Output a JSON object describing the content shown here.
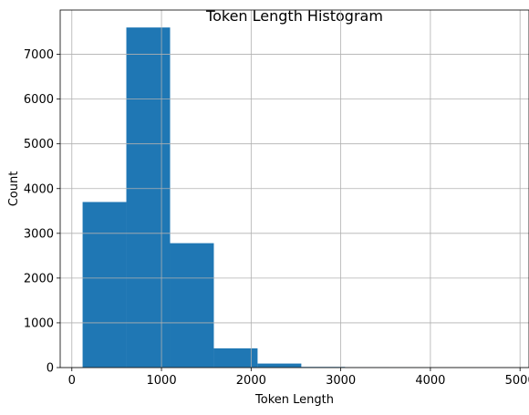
{
  "chart_data": {
    "type": "bar",
    "title": "Token Length Histogram",
    "xlabel": "Token Length",
    "ylabel": "Count",
    "xlim": [
      -130,
      5100
    ],
    "ylim": [
      0,
      7990
    ],
    "xticks": [
      0,
      1000,
      2000,
      3000,
      4000,
      5000
    ],
    "yticks": [
      0,
      1000,
      2000,
      3000,
      4000,
      5000,
      6000,
      7000
    ],
    "grid": true,
    "bins": [
      {
        "start": 120,
        "end": 608,
        "count": 3700
      },
      {
        "start": 608,
        "end": 1096,
        "count": 7600
      },
      {
        "start": 1096,
        "end": 1584,
        "count": 2780
      },
      {
        "start": 1584,
        "end": 2072,
        "count": 430
      },
      {
        "start": 2072,
        "end": 2560,
        "count": 90
      },
      {
        "start": 2560,
        "end": 3048,
        "count": 15
      },
      {
        "start": 3048,
        "end": 3536,
        "count": 8
      },
      {
        "start": 3536,
        "end": 4024,
        "count": 5
      },
      {
        "start": 4024,
        "end": 4512,
        "count": 3
      },
      {
        "start": 4512,
        "end": 5000,
        "count": 2
      }
    ],
    "bar_color": "#1f77b4",
    "grid_color": "#b0b0b0"
  }
}
